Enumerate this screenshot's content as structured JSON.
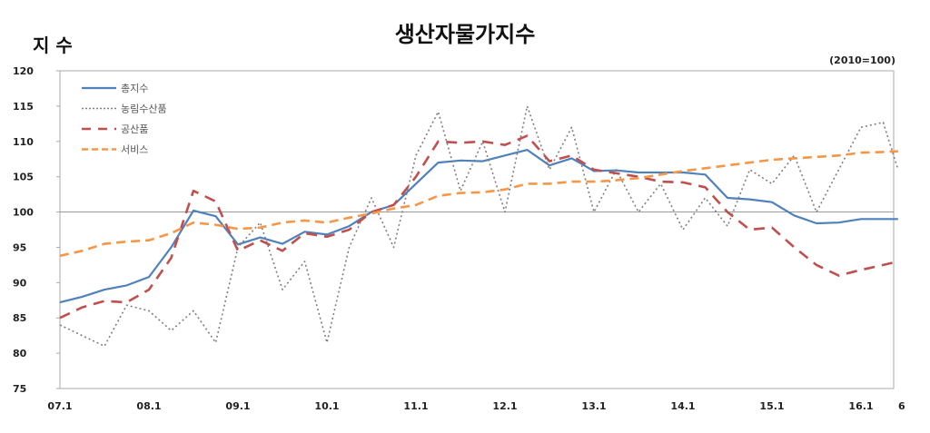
{
  "title": "생산자물가지수",
  "y_axis_label": "지 수",
  "unit_note": "(2010=100)",
  "legend": [
    {
      "label": "총지수",
      "color": "#4f81bd",
      "style": "solid"
    },
    {
      "label": "농림수산품",
      "color": "#7f7f7f",
      "style": "dotted"
    },
    {
      "label": "공산품",
      "color": "#c0504d",
      "style": "dashed"
    },
    {
      "label": "서비스",
      "color": "#f79646",
      "style": "dashed"
    }
  ],
  "chart_data": {
    "type": "line",
    "title": "생산자물가지수",
    "xlabel": "",
    "ylabel": "지 수",
    "note": "(2010=100)",
    "ylim": [
      75,
      120
    ],
    "yticks": [
      75,
      80,
      85,
      90,
      95,
      100,
      105,
      110,
      115,
      120
    ],
    "xticks": [
      "07.1",
      "08.1",
      "09.1",
      "10.1",
      "11.1",
      "12.1",
      "13.1",
      "14.1",
      "15.1",
      "16.1",
      "6"
    ],
    "x_months_from_07_1": [
      0,
      3,
      6,
      9,
      12,
      15,
      18,
      21,
      24,
      27,
      30,
      33,
      36,
      39,
      42,
      45,
      48,
      51,
      54,
      57,
      60,
      63,
      66,
      69,
      72,
      75,
      78,
      81,
      84,
      87,
      90,
      93,
      96,
      99,
      102,
      105,
      108,
      111,
      113
    ],
    "series": [
      {
        "name": "총지수",
        "values": [
          87.2,
          88.0,
          89.0,
          89.6,
          90.8,
          95.0,
          100.2,
          99.4,
          95.4,
          96.4,
          95.5,
          97.2,
          96.8,
          98.0,
          100.0,
          101.0,
          104.0,
          107.0,
          107.3,
          107.2,
          108.0,
          108.8,
          106.6,
          107.6,
          105.8,
          105.9,
          105.6,
          105.6,
          105.6,
          105.3,
          102.0,
          101.8,
          101.4,
          99.5,
          98.4,
          98.5,
          99.0,
          99.0,
          99.0
        ]
      },
      {
        "name": "농림수산품",
        "values": [
          84.0,
          82.5,
          81.0,
          86.8,
          86.0,
          83.2,
          86.0,
          81.5,
          95.0,
          98.5,
          89.0,
          93.0,
          81.5,
          95.0,
          102.0,
          95.0,
          108.0,
          114.2,
          103.0,
          110.0,
          100.0,
          115.0,
          106.0,
          112.0,
          100.0,
          106.0,
          100.0,
          104.0,
          97.5,
          102.0,
          98.0,
          106.0,
          104.0,
          108.0,
          100.0,
          106.0,
          112.0,
          112.7,
          106.0
        ]
      },
      {
        "name": "공산품",
        "values": [
          85.0,
          86.5,
          87.4,
          87.2,
          89.0,
          93.5,
          103.0,
          101.5,
          94.5,
          96.0,
          94.5,
          97.0,
          96.5,
          97.5,
          100.0,
          101.0,
          105.0,
          110.0,
          109.8,
          110.0,
          109.5,
          110.8,
          107.2,
          108.0,
          106.0,
          105.5,
          105.0,
          104.3,
          104.2,
          103.5,
          100.0,
          97.5,
          97.8,
          95.0,
          92.5,
          91.0,
          91.8,
          92.5,
          93.0
        ]
      },
      {
        "name": "서비스",
        "values": [
          93.8,
          94.5,
          95.5,
          95.8,
          96.0,
          97.0,
          98.5,
          98.2,
          97.6,
          97.8,
          98.5,
          98.8,
          98.5,
          99.2,
          99.8,
          100.5,
          101.0,
          102.3,
          102.7,
          102.8,
          103.2,
          104.0,
          104.0,
          104.3,
          104.3,
          104.5,
          104.8,
          105.3,
          105.8,
          106.2,
          106.6,
          107.0,
          107.4,
          107.6,
          107.8,
          108.0,
          108.4,
          108.5,
          108.6
        ]
      }
    ],
    "grid": false,
    "reference_line": 100,
    "legend_position": "upper-left"
  }
}
